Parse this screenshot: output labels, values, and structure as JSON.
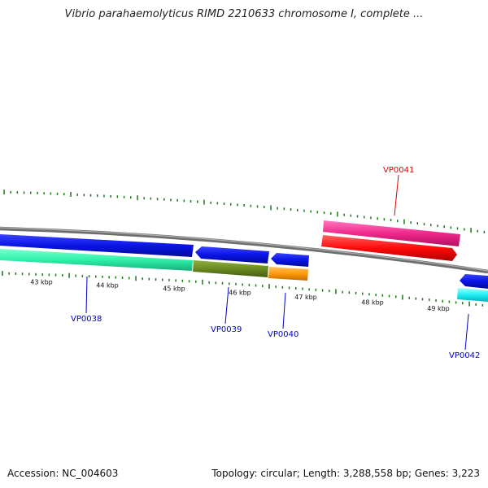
{
  "title": "Vibrio parahaemolyticus RIMD 2210633 chromosome I, complete ...",
  "accession": "Accession: NC_004603",
  "topology": "Topology: circular; Length: 3,288,558 bp; Genes: 3,223",
  "ruler": [
    {
      "label": "43 kbp",
      "kbp": 43
    },
    {
      "label": "44 kbp",
      "kbp": 44
    },
    {
      "label": "45 kbp",
      "kbp": 45
    },
    {
      "label": "46 kbp",
      "kbp": 46
    },
    {
      "label": "47 kbp",
      "kbp": 47
    },
    {
      "label": "48 kbp",
      "kbp": 48
    },
    {
      "label": "49 kbp",
      "kbp": 49
    }
  ],
  "genes": [
    {
      "label": "VP0038",
      "color": "#0000cc"
    },
    {
      "label": "VP0039",
      "color": "#0000cc"
    },
    {
      "label": "VP0040",
      "color": "#0000cc"
    },
    {
      "label": "VP0041",
      "color": "#dd0000"
    },
    {
      "label": "VP0042",
      "color": "#0000cc"
    }
  ],
  "colors": {
    "backbone": "#8a8a8a",
    "tick": "#1a7a1a",
    "blue_feature": "#0a14e6",
    "teal_feature": "#2ef0a8",
    "olive_feature": "#6b8a22",
    "orange_feature": "#ff9a0a",
    "pink_feature": "#f0288c",
    "red_feature": "#ff0a0a",
    "cyan_feature": "#1ef0f5"
  }
}
